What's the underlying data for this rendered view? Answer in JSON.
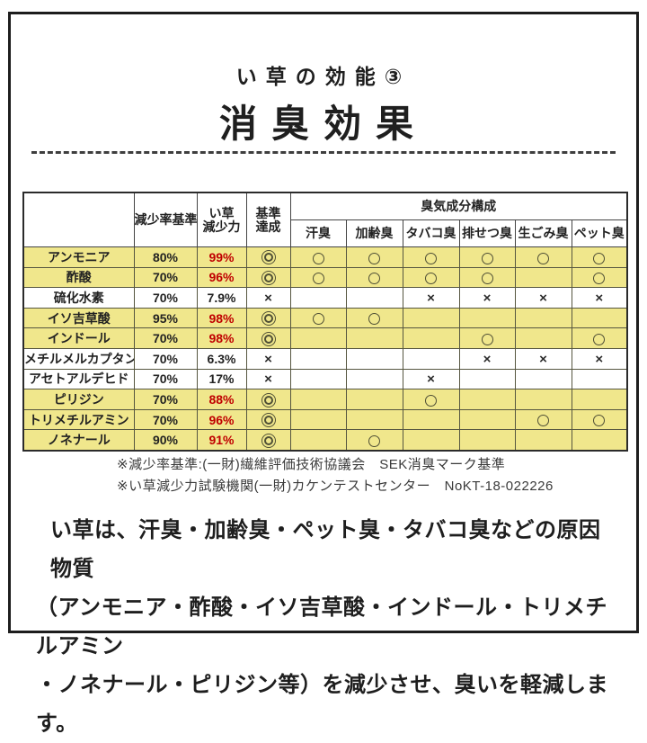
{
  "page": {
    "subtitle": "い草の効能③",
    "title": "消臭効果"
  },
  "table": {
    "headers": {
      "substance": "",
      "reduction_standard": "減少率基準",
      "igusa_power_line1": "い草",
      "igusa_power_line2": "減少力",
      "standard_line1": "基準",
      "standard_line2": "達成",
      "odor_group": "臭気成分構成",
      "odor_columns": [
        "汗臭",
        "加齢臭",
        "タバコ臭",
        "排せつ臭",
        "生ごみ臭",
        "ペット臭"
      ]
    },
    "rows": [
      {
        "substance": "アンモニア",
        "standard": "80%",
        "power": "99%",
        "power_color": "red",
        "achieved": "double-circle",
        "odors": [
          "circle",
          "circle",
          "circle",
          "circle",
          "circle",
          "circle"
        ],
        "highlight": true
      },
      {
        "substance": "酢酸",
        "standard": "70%",
        "power": "96%",
        "power_color": "red",
        "achieved": "double-circle",
        "odors": [
          "circle",
          "circle",
          "circle",
          "circle",
          "",
          "circle"
        ],
        "highlight": true
      },
      {
        "substance": "硫化水素",
        "standard": "70%",
        "power": "7.9%",
        "power_color": "black",
        "achieved": "cross",
        "odors": [
          "",
          "",
          "cross",
          "cross",
          "cross",
          "cross"
        ],
        "highlight": false
      },
      {
        "substance": "イソ吉草酸",
        "standard": "95%",
        "power": "98%",
        "power_color": "red",
        "achieved": "double-circle",
        "odors": [
          "circle",
          "circle",
          "",
          "",
          "",
          ""
        ],
        "highlight": true
      },
      {
        "substance": "インドール",
        "standard": "70%",
        "power": "98%",
        "power_color": "red",
        "achieved": "double-circle",
        "odors": [
          "",
          "",
          "",
          "circle",
          "",
          "circle"
        ],
        "highlight": true
      },
      {
        "substance": "メチルメルカプタン",
        "standard": "70%",
        "power": "6.3%",
        "power_color": "black",
        "achieved": "cross",
        "odors": [
          "",
          "",
          "",
          "cross",
          "cross",
          "cross"
        ],
        "highlight": false
      },
      {
        "substance": "アセトアルデヒド",
        "standard": "70%",
        "power": "17%",
        "power_color": "black",
        "achieved": "cross",
        "odors": [
          "",
          "",
          "cross",
          "",
          "",
          ""
        ],
        "highlight": false
      },
      {
        "substance": "ピリジン",
        "standard": "70%",
        "power": "88%",
        "power_color": "red",
        "achieved": "double-circle",
        "odors": [
          "",
          "",
          "circle",
          "",
          "",
          ""
        ],
        "highlight": true
      },
      {
        "substance": "トリメチルアミン",
        "standard": "70%",
        "power": "96%",
        "power_color": "red",
        "achieved": "double-circle",
        "odors": [
          "",
          "",
          "",
          "",
          "circle",
          "circle"
        ],
        "highlight": true
      },
      {
        "substance": "ノネナール",
        "standard": "90%",
        "power": "91%",
        "power_color": "red",
        "achieved": "double-circle",
        "odors": [
          "",
          "circle",
          "",
          "",
          "",
          ""
        ],
        "highlight": true
      }
    ],
    "symbol_legend": {
      "double-circle": "◎",
      "circle": "○",
      "cross": "×"
    }
  },
  "footnotes": [
    "※減少率基準:(一財)繊維評価技術協議会　SEK消臭マーク基準",
    "※い草減少力試験機関(一財)カケンテストセンター　NoKT-18-022226"
  ],
  "description": {
    "line1": "い草は、汗臭・加齢臭・ペット臭・タバコ臭などの原因物質",
    "line2": "（アンモニア・酢酸・イソ吉草酸・インドール・トリメチルアミン",
    "line3": "・ノネナール・ピリジン等）を減少させ、臭いを軽減します。"
  },
  "colors": {
    "highlight_yellow": "#f0e78c",
    "accent_red": "#c00000",
    "symbol_olive": "#4f4f35"
  }
}
